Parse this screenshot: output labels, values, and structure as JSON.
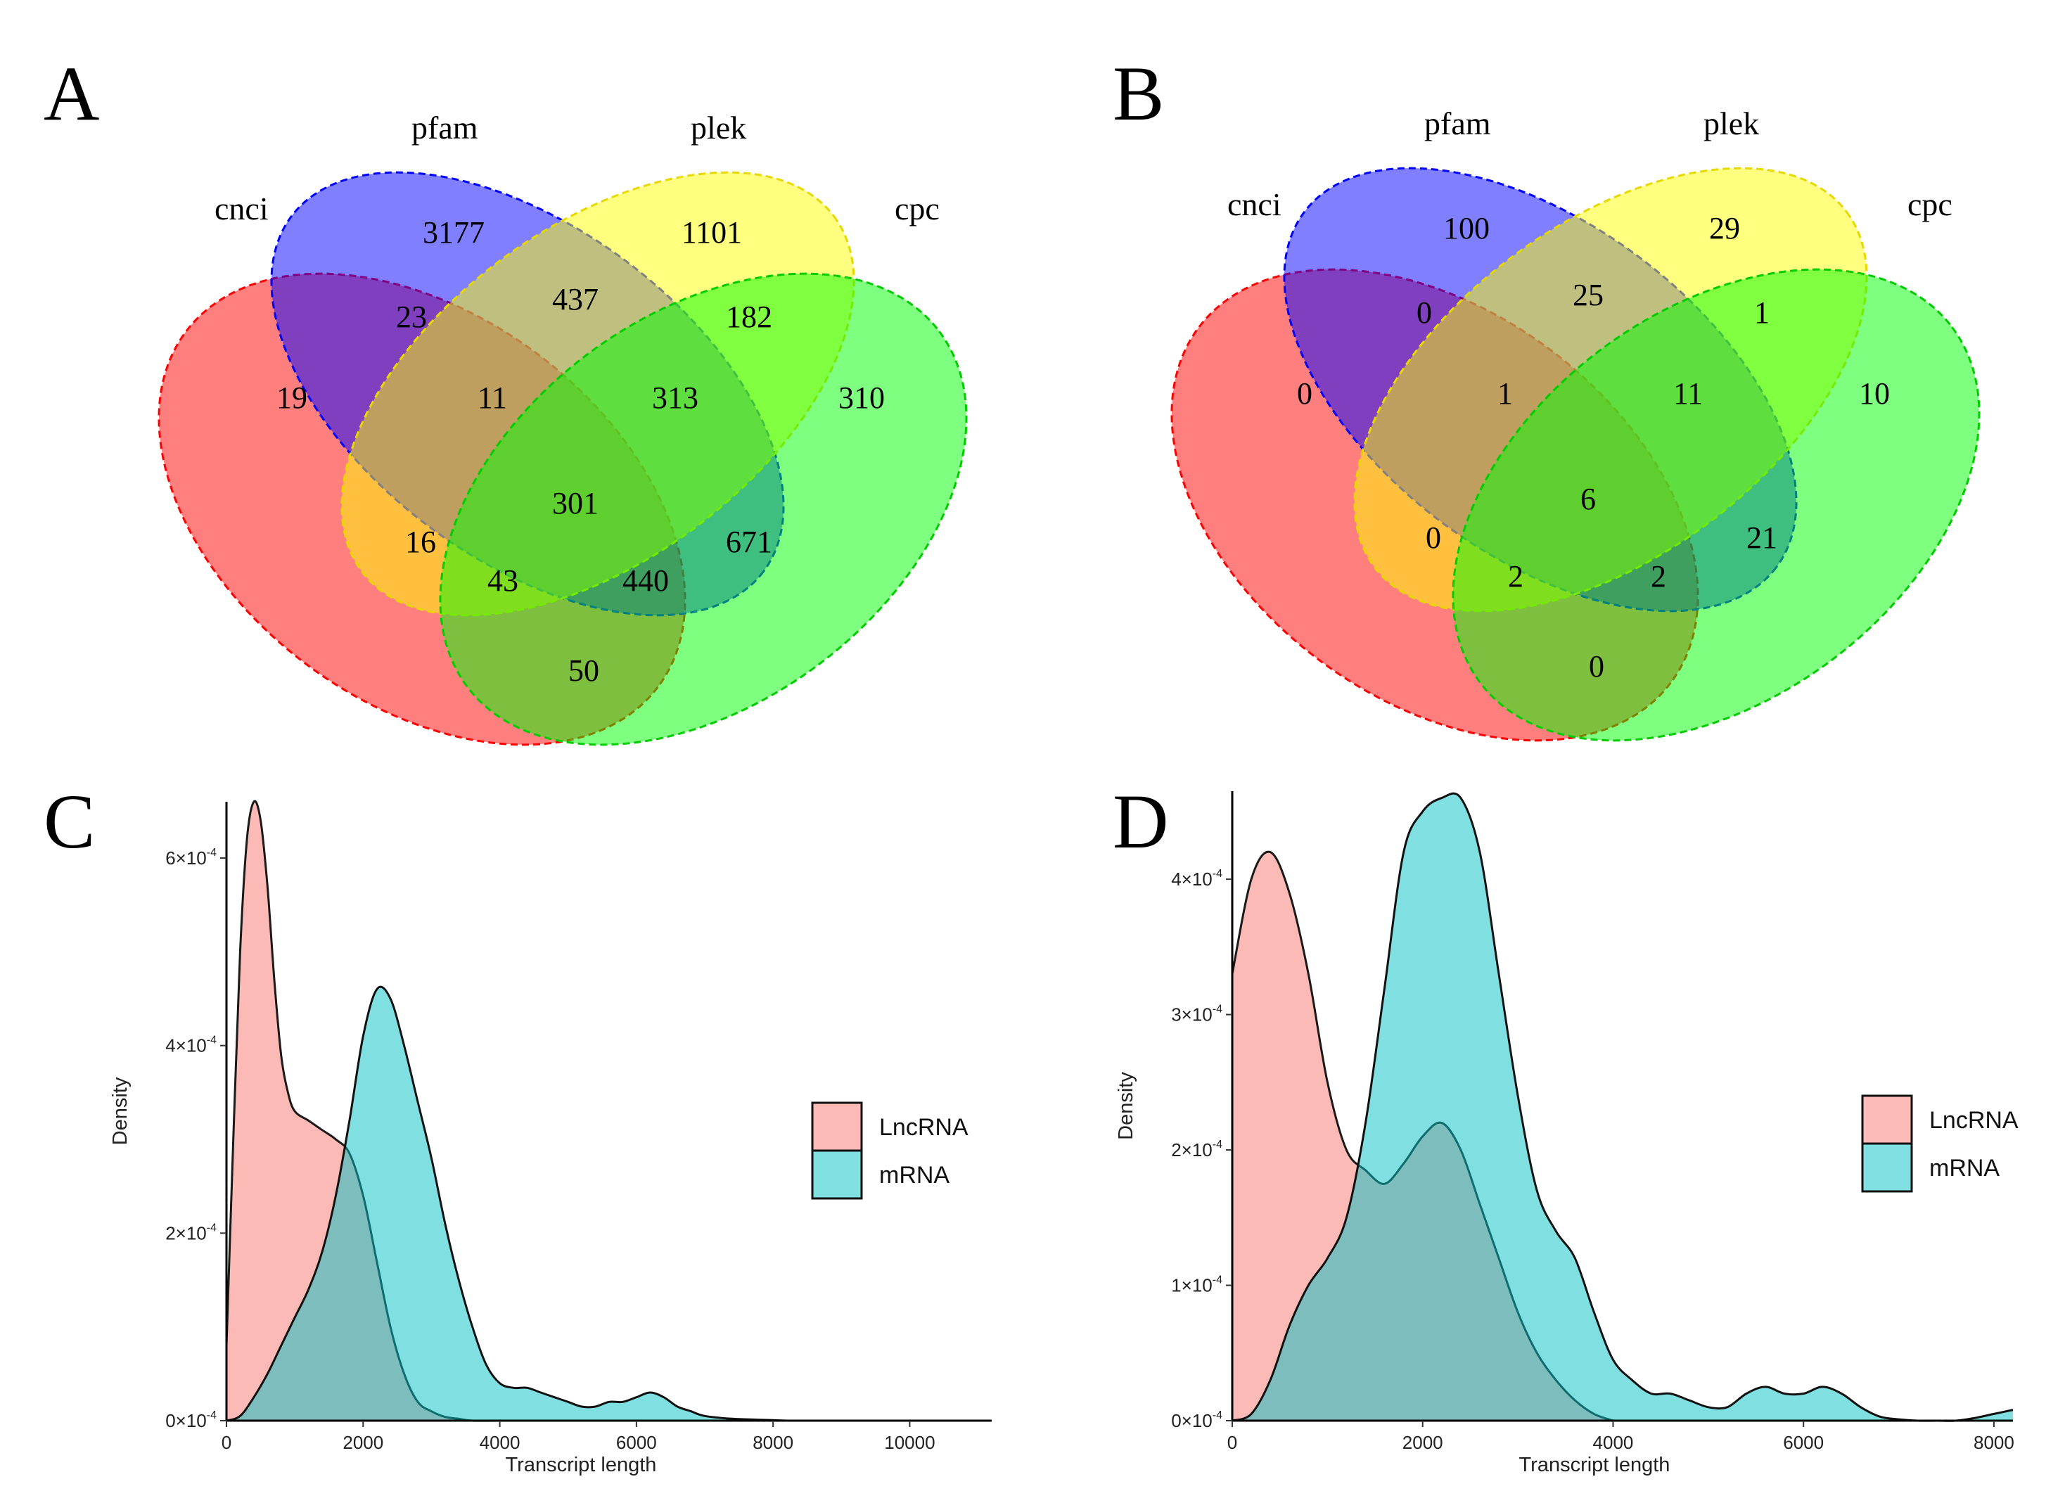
{
  "panels": {
    "A": "A",
    "B": "B",
    "C": "C",
    "D": "D"
  },
  "chart_data": [
    {
      "type": "venn",
      "panel": "A",
      "sets": [
        "cnci",
        "pfam",
        "plek",
        "cpc"
      ],
      "colors": {
        "cnci": "#ff0000",
        "pfam": "#0000ff",
        "plek": "#ffff00",
        "cpc": "#00ff00"
      },
      "regions": {
        "cnci": 19,
        "pfam": 3177,
        "plek": 1101,
        "cpc": 310,
        "cnci_pfam": 23,
        "pfam_plek": 437,
        "plek_cpc": 182,
        "cnci_pfam_plek": 11,
        "pfam_plek_cpc": 313,
        "cnci_pfam_plek_cpc": 301,
        "cnci_plek": 16,
        "pfam_cpc": 671,
        "cnci_plek_cpc": 43,
        "cnci_pfam_cpc": 440,
        "cnci_cpc": 50
      }
    },
    {
      "type": "venn",
      "panel": "B",
      "sets": [
        "cnci",
        "pfam",
        "plek",
        "cpc"
      ],
      "colors": {
        "cnci": "#ff0000",
        "pfam": "#0000ff",
        "plek": "#ffff00",
        "cpc": "#00ff00"
      },
      "regions": {
        "cnci": 0,
        "pfam": 100,
        "plek": 29,
        "cpc": 10,
        "cnci_pfam": 0,
        "pfam_plek": 25,
        "plek_cpc": 1,
        "cnci_pfam_plek": 1,
        "pfam_plek_cpc": 11,
        "cnci_pfam_plek_cpc": 6,
        "cnci_plek": 0,
        "pfam_cpc": 21,
        "cnci_plek_cpc": 2,
        "cnci_pfam_cpc": 2,
        "cnci_cpc": 0
      }
    },
    {
      "type": "area",
      "panel": "C",
      "xlabel": "Transcript length",
      "ylabel": "Density",
      "xlim": [
        0,
        11200
      ],
      "ylim": [
        0,
        0.00066
      ],
      "xticks": [
        0,
        2000,
        4000,
        6000,
        8000,
        10000
      ],
      "yticks": [
        0,
        0.0002,
        0.0004,
        0.0006
      ],
      "ytick_labels": [
        "0×10",
        "2×10",
        "4×10",
        "6×10"
      ],
      "ytick_exp": "-4",
      "legend_position": "right",
      "series": [
        {
          "name": "LncRNA",
          "color": "#f8766d",
          "x": [
            0,
            100,
            200,
            300,
            400,
            500,
            600,
            700,
            800,
            900,
            1000,
            1200,
            1400,
            1600,
            1800,
            2000,
            2200,
            2400,
            2600,
            2800,
            3000,
            3200,
            3400,
            3600,
            4000,
            4500
          ],
          "y": [
            8e-05,
            0.0003,
            0.0005,
            0.00062,
            0.00066,
            0.00064,
            0.00057,
            0.00047,
            0.00039,
            0.00035,
            0.00033,
            0.00032,
            0.00031,
            0.0003,
            0.000285,
            0.00024,
            0.00017,
            0.0001,
            5e-05,
            2e-05,
            1e-05,
            4e-06,
            2e-06,
            0,
            0,
            0
          ]
        },
        {
          "name": "mRNA",
          "color": "#00bfc4",
          "x": [
            0,
            200,
            400,
            600,
            800,
            1000,
            1200,
            1400,
            1600,
            1800,
            2000,
            2200,
            2400,
            2600,
            2800,
            3000,
            3200,
            3400,
            3600,
            3800,
            4000,
            4200,
            4400,
            4600,
            4800,
            5000,
            5200,
            5400,
            5600,
            5800,
            6000,
            6200,
            6400,
            6600,
            6800,
            7000,
            7400,
            7800,
            8200
          ],
          "y": [
            0,
            5e-06,
            2.5e-05,
            5e-05,
            8e-05,
            0.00011,
            0.00014,
            0.00018,
            0.00024,
            0.00032,
            0.00041,
            0.00046,
            0.00045,
            0.0004,
            0.00034,
            0.00028,
            0.00021,
            0.00015,
            0.0001,
            6e-05,
            4e-05,
            3.5e-05,
            3.5e-05,
            3e-05,
            2.5e-05,
            2e-05,
            1.5e-05,
            1.5e-05,
            2e-05,
            2e-05,
            2.5e-05,
            3e-05,
            2.5e-05,
            1.5e-05,
            1e-05,
            5e-06,
            2e-06,
            1e-06,
            0
          ]
        }
      ]
    },
    {
      "type": "area",
      "panel": "D",
      "xlabel": "Transcript length",
      "ylabel": "Density",
      "xlim": [
        0,
        8200
      ],
      "ylim": [
        0,
        0.000465
      ],
      "xticks": [
        0,
        2000,
        4000,
        6000,
        8000
      ],
      "yticks": [
        0,
        0.0001,
        0.0002,
        0.0003,
        0.0004
      ],
      "ytick_labels": [
        "0×10",
        "1×10",
        "2×10",
        "3×10",
        "4×10"
      ],
      "ytick_exp": "-4",
      "legend_position": "right",
      "series": [
        {
          "name": "LncRNA",
          "color": "#f8766d",
          "x": [
            0,
            200,
            400,
            600,
            800,
            1000,
            1200,
            1400,
            1600,
            1800,
            2000,
            2200,
            2400,
            2600,
            2800,
            3000,
            3200,
            3400,
            3600,
            3800,
            4000
          ],
          "y": [
            0.00033,
            0.0004,
            0.00042,
            0.00039,
            0.00033,
            0.00025,
            0.0002,
            0.000185,
            0.000175,
            0.00019,
            0.00021,
            0.00022,
            0.0002,
            0.00016,
            0.00012,
            8e-05,
            5e-05,
            3e-05,
            1.5e-05,
            5e-06,
            0
          ]
        },
        {
          "name": "mRNA",
          "color": "#00bfc4",
          "x": [
            0,
            200,
            400,
            600,
            800,
            1000,
            1200,
            1400,
            1600,
            1800,
            2000,
            2200,
            2400,
            2600,
            2800,
            3000,
            3200,
            3400,
            3600,
            3800,
            4000,
            4200,
            4400,
            4600,
            4800,
            5000,
            5200,
            5400,
            5600,
            5800,
            6000,
            6200,
            6400,
            6600,
            6800,
            7000,
            7200,
            7400,
            7600,
            7800,
            8000,
            8200
          ],
          "y": [
            0,
            5e-06,
            3e-05,
            7e-05,
            0.0001,
            0.00012,
            0.00015,
            0.00022,
            0.00032,
            0.00042,
            0.00045,
            0.00046,
            0.00046,
            0.00042,
            0.00033,
            0.00024,
            0.00017,
            0.00014,
            0.00012,
            8e-05,
            4.5e-05,
            3e-05,
            2e-05,
            2e-05,
            1.5e-05,
            1e-05,
            1e-05,
            2e-05,
            2.5e-05,
            2e-05,
            2e-05,
            2.5e-05,
            2e-05,
            1e-05,
            3e-06,
            1e-06,
            0,
            0,
            0,
            2e-06,
            5e-06,
            8e-06
          ]
        }
      ]
    }
  ]
}
